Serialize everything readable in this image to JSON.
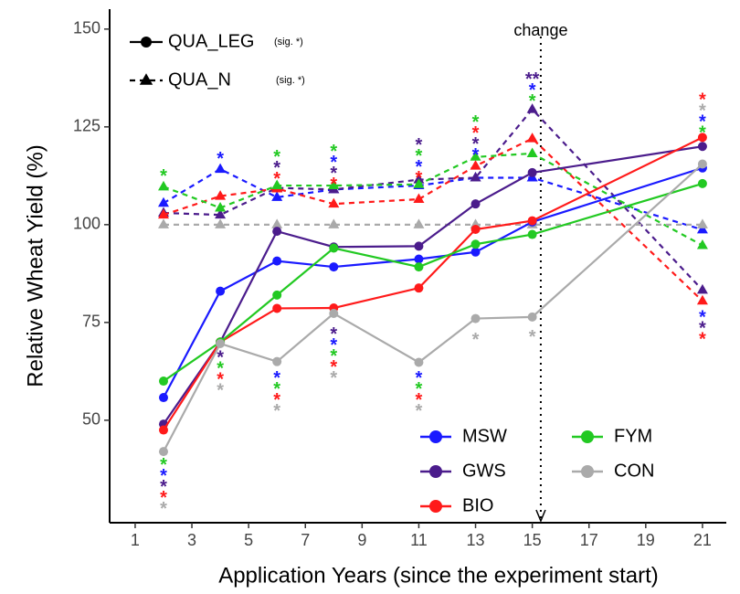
{
  "chart_data": {
    "type": "line",
    "x_label": "Application Years (since the experiment start)",
    "y_label": "Relative Wheat Yield (%)",
    "x": [
      2,
      4,
      6,
      8,
      11,
      13,
      15,
      21
    ],
    "xlim": [
      0.1,
      21.84
    ],
    "xticks": [
      1,
      3,
      5,
      7,
      9,
      11,
      13,
      15,
      17,
      19,
      21
    ],
    "ylim": [
      23.8,
      155.1
    ],
    "yticks": [
      50,
      75,
      100,
      125,
      150
    ],
    "line_styles": [
      {
        "label": "QUA_LEG",
        "sig": "(sig. *)",
        "dashed": false,
        "marker": "circle"
      },
      {
        "label": "QUA_N",
        "sig": "(sig. *)",
        "dashed": true,
        "marker": "triangle"
      }
    ],
    "series": [
      {
        "name": "MSW",
        "color": "#1a1aff",
        "values": [
          55.8,
          83,
          90.7,
          89.2,
          91.2,
          93,
          100.7,
          114.5
        ],
        "values_n": [
          105.5,
          114.2,
          107,
          109,
          110,
          112,
          112,
          98.7
        ]
      },
      {
        "name": "GWS",
        "color": "#4b1c8c",
        "values": [
          49,
          70,
          98.3,
          94.3,
          94.5,
          105.3,
          113.3,
          120
        ],
        "values_n": [
          103,
          102.5,
          109.4,
          109,
          111.5,
          112,
          129.5,
          83.3
        ]
      },
      {
        "name": "BIO",
        "color": "#ff1a1a",
        "values": [
          47.5,
          70,
          78.6,
          78.7,
          83.8,
          98.8,
          101,
          122.3
        ],
        "values_n": [
          102.5,
          107.3,
          109.2,
          105.3,
          106.5,
          115,
          122,
          80.5
        ]
      },
      {
        "name": "FYM",
        "color": "#22c922",
        "values": [
          60,
          70,
          82,
          94,
          89.2,
          95,
          97.5,
          110.5
        ],
        "values_n": [
          109.7,
          104.3,
          110,
          110,
          110.3,
          117.3,
          118.2,
          94.7
        ]
      },
      {
        "name": "CON",
        "color": "#aaaaaa",
        "values": [
          42,
          69.6,
          65,
          77.3,
          64.8,
          76,
          76.4,
          115.5
        ],
        "values_n": [
          100,
          100,
          100,
          100,
          100,
          100,
          100,
          100
        ]
      }
    ],
    "change": {
      "x": 15.3,
      "label": "change"
    },
    "significance": [
      {
        "x": 2,
        "y": 39.5,
        "marks": [
          {
            "text": "*",
            "color": "#22c922"
          },
          {
            "text": "*",
            "color": "#1a1aff"
          },
          {
            "text": "*",
            "color": "#4b1c8c"
          },
          {
            "text": "*",
            "color": "#ff1a1a"
          },
          {
            "text": "*",
            "color": "#aaaaaa"
          }
        ]
      },
      {
        "x": 2,
        "y": 113.3,
        "marks": [
          {
            "text": "*",
            "color": "#22c922"
          }
        ]
      },
      {
        "x": 4,
        "y": 117.8,
        "marks": [
          {
            "text": "*",
            "color": "#1a1aff"
          }
        ]
      },
      {
        "x": 4,
        "y": 67,
        "marks": [
          {
            "text": "*",
            "color": "#4b1c8c"
          },
          {
            "text": "*",
            "color": "#22c922"
          },
          {
            "text": "*",
            "color": "#ff1a1a"
          },
          {
            "text": "*",
            "color": "#aaaaaa"
          }
        ]
      },
      {
        "x": 6,
        "y": 118.2,
        "marks": [
          {
            "text": "*",
            "color": "#22c922"
          },
          {
            "text": "*",
            "color": "#4b1c8c"
          },
          {
            "text": "*",
            "color": "#ff1a1a"
          }
        ]
      },
      {
        "x": 6,
        "y": 61.7,
        "marks": [
          {
            "text": "*",
            "color": "#1a1aff"
          },
          {
            "text": "*",
            "color": "#22c922"
          },
          {
            "text": "*",
            "color": "#ff1a1a"
          },
          {
            "text": "*",
            "color": "#aaaaaa"
          }
        ]
      },
      {
        "x": 8,
        "y": 119.6,
        "marks": [
          {
            "text": "*",
            "color": "#22c922"
          },
          {
            "text": "*",
            "color": "#1a1aff"
          },
          {
            "text": "*",
            "color": "#4b1c8c"
          },
          {
            "text": "*",
            "color": "#ff1a1a"
          }
        ]
      },
      {
        "x": 8,
        "y": 72.9,
        "marks": [
          {
            "text": "*",
            "color": "#4b1c8c"
          },
          {
            "text": "*",
            "color": "#1a1aff"
          },
          {
            "text": "*",
            "color": "#22c922"
          },
          {
            "text": "*",
            "color": "#ff1a1a"
          },
          {
            "text": "*",
            "color": "#aaaaaa"
          }
        ]
      },
      {
        "x": 11,
        "y": 121.3,
        "marks": [
          {
            "text": "*",
            "color": "#4b1c8c"
          },
          {
            "text": "*",
            "color": "#22c922"
          },
          {
            "text": "*",
            "color": "#1a1aff"
          },
          {
            "text": "*",
            "color": "#ff1a1a"
          }
        ]
      },
      {
        "x": 11,
        "y": 61.7,
        "marks": [
          {
            "text": "*",
            "color": "#1a1aff"
          },
          {
            "text": "*",
            "color": "#22c922"
          },
          {
            "text": "*",
            "color": "#ff1a1a"
          },
          {
            "text": "*",
            "color": "#aaaaaa"
          }
        ]
      },
      {
        "x": 13,
        "y": 127.1,
        "marks": [
          {
            "text": "*",
            "color": "#22c922"
          },
          {
            "text": "*",
            "color": "#ff1a1a"
          },
          {
            "text": "*",
            "color": "#4b1c8c"
          },
          {
            "text": "*",
            "color": "#1a1aff"
          }
        ]
      },
      {
        "x": 13,
        "y": 71.5,
        "marks": [
          {
            "text": "*",
            "color": "#aaaaaa"
          }
        ]
      },
      {
        "x": 15,
        "y": 138.1,
        "marks": [
          {
            "text": "**",
            "color": "#4b1c8c"
          },
          {
            "text": "*",
            "color": "#1a1aff"
          },
          {
            "text": "*",
            "color": "#22c922"
          }
        ]
      },
      {
        "x": 15,
        "y": 72.2,
        "marks": [
          {
            "text": "*",
            "color": "#aaaaaa"
          }
        ]
      },
      {
        "x": 21,
        "y": 132.9,
        "marks": [
          {
            "text": "*",
            "color": "#ff1a1a"
          },
          {
            "text": "*",
            "color": "#aaaaaa"
          },
          {
            "text": "*",
            "color": "#1a1aff"
          },
          {
            "text": "*",
            "color": "#22c922"
          }
        ]
      },
      {
        "x": 21,
        "y": 77.3,
        "marks": [
          {
            "text": "*",
            "color": "#1a1aff"
          },
          {
            "text": "*",
            "color": "#4b1c8c"
          },
          {
            "text": "*",
            "color": "#ff1a1a"
          }
        ]
      }
    ]
  }
}
